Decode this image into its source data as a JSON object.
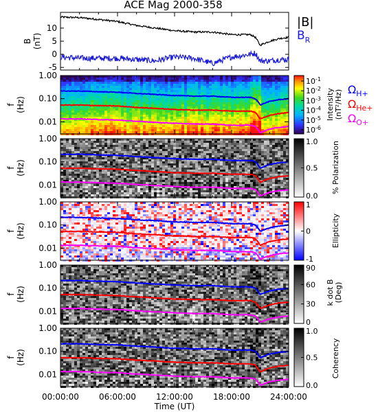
{
  "title": "ACE Mag 2000-358",
  "x_axis": {
    "label": "Time (UT)",
    "ticks": [
      "00:00:00",
      "06:00:00",
      "12:00:00",
      "18:00:00",
      "24:00:00"
    ]
  },
  "colors": {
    "B_total": "#000000",
    "B_R": "#1a1ad8",
    "H_plus": "#0000ff",
    "He_plus": "#ff0000",
    "O_plus": "#ff00ff"
  },
  "legend": {
    "mag_total": "|B|",
    "mag_r_main": "B",
    "mag_r_sub": "R",
    "omega": "Ω",
    "h_sub": "H+",
    "he_sub": "He+",
    "o_sub": "O+"
  },
  "panels": {
    "mag": {
      "ylabel_main": "B",
      "ylabel_unit": "(nT)",
      "yticks": [
        "10",
        "5",
        "0",
        "-5"
      ]
    },
    "freq_ticks": [
      "1.00",
      "0.10",
      "0.01"
    ],
    "freq_ylabel_main": "f",
    "freq_ylabel_unit": "(Hz)",
    "intensity": {
      "cbar_label_1": "Intensity",
      "cbar_label_2": "(nT²/Hz)",
      "cbar_ticks_base": "10",
      "cbar_ticks_exp": [
        "-1",
        "-2",
        "-3",
        "-4",
        "-5",
        "-6"
      ]
    },
    "polarization": {
      "cbar_label": "% Polarization",
      "cbar_ticks": [
        "1.0",
        "0.5",
        "0.0"
      ]
    },
    "ellipticity": {
      "cbar_label": "Ellipticity",
      "cbar_ticks": [
        "1",
        "0",
        "-1"
      ]
    },
    "kdotb": {
      "cbar_label_1": "k dot B",
      "cbar_label_2": "(Deg)",
      "cbar_ticks": [
        "90",
        "60",
        "30",
        "0"
      ]
    },
    "coherency": {
      "cbar_label": "Coherency",
      "cbar_ticks": [
        "1.0",
        "0.5",
        "0.0"
      ]
    }
  },
  "chart_data": [
    {
      "type": "line",
      "title": "ACE Mag 2000-358",
      "xlabel": "Time (UT)",
      "ylabel": "B (nT)",
      "x": [
        0,
        2,
        4,
        6,
        8,
        10,
        12,
        14,
        16,
        18,
        19,
        20,
        20.5,
        21,
        22,
        23,
        24
      ],
      "xlim": [
        0,
        24
      ],
      "ylim": [
        -6,
        16
      ],
      "series": [
        {
          "name": "|B|",
          "values": [
            14.2,
            14.0,
            13.3,
            12.5,
            11.0,
            10.0,
            9.0,
            8.5,
            8.5,
            7.5,
            7.5,
            7.5,
            6.5,
            3.5,
            5.0,
            6.0,
            6.5
          ]
        },
        {
          "name": "B_R",
          "values": [
            -1.0,
            -1.5,
            -1.5,
            -1.5,
            -2.0,
            -2.5,
            -1.0,
            -1.5,
            -3.5,
            -1.0,
            -0.5,
            0.0,
            0.5,
            -2.5,
            -2.5,
            -2.0,
            -2.0
          ]
        }
      ]
    },
    {
      "type": "heatmap",
      "panel": "Intensity (nT²/Hz)",
      "ylabel": "f (Hz)",
      "yscale": "log",
      "ylim": [
        0.003,
        1.0
      ],
      "colorbar": "log, 1e-6 to 1e-1",
      "x": [
        0,
        2,
        4,
        6,
        8,
        10,
        12,
        14,
        16,
        18,
        19,
        20,
        20.5,
        21,
        22,
        23,
        24
      ],
      "series": [
        {
          "name": "Ω H+",
          "values": [
            0.213,
            0.213,
            0.2,
            0.19,
            0.168,
            0.152,
            0.137,
            0.129,
            0.129,
            0.114,
            0.114,
            0.114,
            0.1,
            0.053,
            0.076,
            0.091,
            0.099
          ]
        },
        {
          "name": "Ω He+",
          "values": [
            0.053,
            0.053,
            0.05,
            0.048,
            0.042,
            0.038,
            0.034,
            0.032,
            0.032,
            0.029,
            0.029,
            0.029,
            0.025,
            0.013,
            0.019,
            0.023,
            0.025
          ]
        },
        {
          "name": "Ω O+",
          "values": [
            0.0133,
            0.0133,
            0.0125,
            0.0119,
            0.0105,
            0.0095,
            0.0086,
            0.008,
            0.008,
            0.0071,
            0.0071,
            0.0071,
            0.0063,
            0.0033,
            0.0048,
            0.0057,
            0.0062
          ]
        }
      ]
    },
    {
      "type": "heatmap",
      "panel": "% Polarization",
      "ylabel": "f (Hz)",
      "yscale": "log",
      "ylim": [
        0.003,
        1.0
      ],
      "colorbar": "linear, 0.0 to 1.0"
    },
    {
      "type": "heatmap",
      "panel": "Ellipticity",
      "ylabel": "f (Hz)",
      "yscale": "log",
      "ylim": [
        0.003,
        1.0
      ],
      "colorbar": "linear, -1 to 1"
    },
    {
      "type": "heatmap",
      "panel": "k dot B (Deg)",
      "ylabel": "f (Hz)",
      "yscale": "log",
      "ylim": [
        0.003,
        1.0
      ],
      "colorbar": "linear, 0 to 90"
    },
    {
      "type": "heatmap",
      "panel": "Coherency",
      "ylabel": "f (Hz)",
      "yscale": "log",
      "ylim": [
        0.003,
        1.0
      ],
      "colorbar": "linear, 0.0 to 1.0"
    }
  ]
}
